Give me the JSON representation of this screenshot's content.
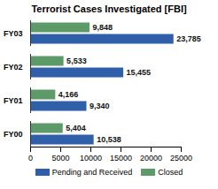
{
  "chart_data": {
    "type": "bar",
    "title": "Terrorist Cases Investigated [FBI]",
    "orientation": "horizontal",
    "data_labels": true,
    "legend": "bottom",
    "categories": [
      "FY03",
      "FY02",
      "FY01",
      "FY00"
    ],
    "series": [
      {
        "name": "Pending and Received",
        "color": "#2f5fa8",
        "values": [
          23785,
          15455,
          9340,
          10538
        ],
        "value_labels": [
          "23,785",
          "15,455",
          "9,340",
          "10,538"
        ]
      },
      {
        "name": "Closed",
        "color": "#5c9a6a",
        "values": [
          9848,
          5533,
          4166,
          5404
        ],
        "value_labels": [
          "9,848",
          "5,533",
          "4,166",
          "5,404"
        ]
      }
    ],
    "xlim": [
      0,
      25000
    ],
    "xticks": [
      0,
      5000,
      10000,
      15000,
      20000,
      25000
    ]
  }
}
